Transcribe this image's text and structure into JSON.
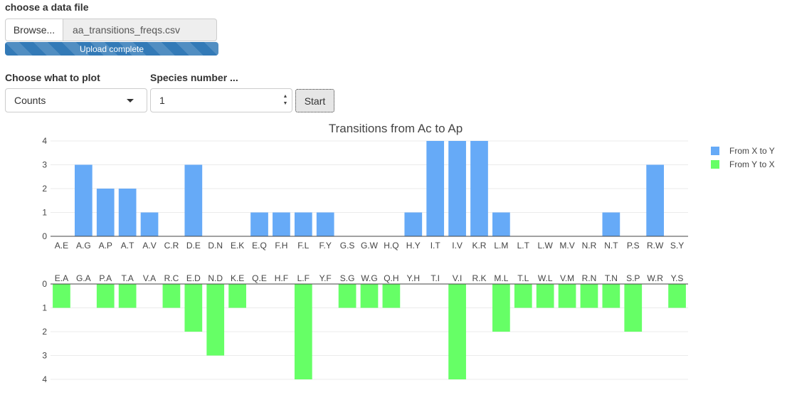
{
  "controls": {
    "file_label": "choose a data file",
    "browse_label": "Browse...",
    "file_name": "aa_transitions_freqs.csv",
    "upload_status": "Upload complete",
    "upload_progress": 1.0,
    "plot_label": "Choose what to plot",
    "plot_selected": "Counts",
    "species_label": "Species number ...",
    "species_value": "1",
    "start_label": "Start"
  },
  "chart_data": [
    {
      "type": "bar",
      "title": "Transitions from Ac to Ap",
      "categories": [
        "A.E",
        "A.G",
        "A.P",
        "A.T",
        "A.V",
        "C.R",
        "D.E",
        "D.N",
        "E.K",
        "E.Q",
        "F.H",
        "F.L",
        "F.Y",
        "G.S",
        "G.W",
        "H.Q",
        "H.Y",
        "I.T",
        "I.V",
        "K.R",
        "L.M",
        "L.T",
        "L.W",
        "M.V",
        "N.R",
        "N.T",
        "P.S",
        "R.W",
        "S.Y"
      ],
      "series": [
        {
          "name": "From X to Y",
          "values": [
            0,
            3,
            2,
            2,
            1,
            0,
            3,
            0,
            0,
            1,
            1,
            1,
            1,
            0,
            0,
            0,
            1,
            4,
            4,
            4,
            1,
            0,
            0,
            0,
            0,
            1,
            0,
            3,
            0
          ],
          "color": "#66aaf7"
        }
      ],
      "ylim": [
        0,
        4
      ],
      "yticks": [
        0,
        1,
        2,
        3,
        4
      ],
      "grid": true,
      "legend_position": "top-right"
    },
    {
      "type": "bar",
      "orientation": "downward",
      "categories": [
        "E.A",
        "G.A",
        "P.A",
        "T.A",
        "V.A",
        "R.C",
        "E.D",
        "N.D",
        "K.E",
        "Q.E",
        "H.F",
        "L.F",
        "Y.F",
        "S.G",
        "W.G",
        "Q.H",
        "Y.H",
        "T.I",
        "V.I",
        "R.K",
        "M.L",
        "T.L",
        "W.L",
        "V.M",
        "R.N",
        "T.N",
        "S.P",
        "W.R",
        "Y.S"
      ],
      "series": [
        {
          "name": "From Y to X",
          "values": [
            1,
            0,
            1,
            1,
            0,
            1,
            2,
            3,
            1,
            0,
            0,
            4,
            0,
            1,
            1,
            1,
            0,
            0,
            4,
            0,
            2,
            1,
            1,
            1,
            1,
            1,
            2,
            0,
            1
          ],
          "color": "#66ff66"
        }
      ],
      "ylim": [
        0,
        4
      ],
      "yticks": [
        0,
        1,
        2,
        3,
        4
      ],
      "grid": true
    }
  ],
  "legend": [
    {
      "label": "From X to Y",
      "color": "#66aaf7"
    },
    {
      "label": "From Y to X",
      "color": "#66ff66"
    }
  ]
}
